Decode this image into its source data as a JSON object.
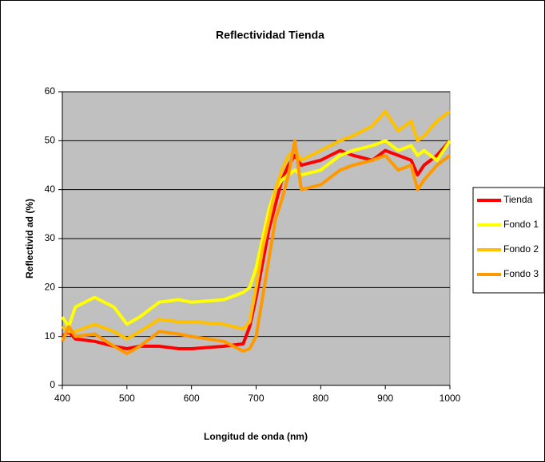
{
  "chart_data": {
    "type": "line",
    "title": "Reflectividad Tienda",
    "x_label": "Longitud de onda (nm)",
    "y_label": "Reflectivid ad (%)",
    "x": [
      400,
      410,
      420,
      450,
      480,
      500,
      520,
      550,
      580,
      600,
      650,
      680,
      690,
      700,
      710,
      720,
      730,
      740,
      750,
      760,
      770,
      800,
      830,
      850,
      880,
      900,
      920,
      940,
      950,
      960,
      980,
      1000
    ],
    "series": [
      {
        "name": "Tienda",
        "color": "#ff0000",
        "values": [
          10,
          11,
          9.5,
          9,
          8,
          7.5,
          8,
          8,
          7.5,
          7.5,
          8,
          8.5,
          12,
          18,
          25,
          32,
          37,
          42,
          45,
          47,
          45,
          46,
          48,
          47,
          46,
          48,
          47,
          46,
          43,
          45,
          47,
          50
        ]
      },
      {
        "name": "Fondo 1",
        "color": "#ffff00",
        "values": [
          14,
          12,
          16,
          18,
          16,
          12.5,
          14,
          17,
          17.5,
          17,
          17.5,
          19,
          20,
          24,
          30,
          36,
          40,
          42,
          43,
          44,
          43,
          44,
          47,
          48,
          49,
          50,
          48,
          49,
          47,
          48,
          46,
          50
        ]
      },
      {
        "name": "Fondo 2",
        "color": "#ffc000",
        "values": [
          12,
          11,
          11,
          12.5,
          11,
          9.5,
          11,
          13.5,
          13,
          13,
          12.5,
          11.5,
          13,
          20,
          28,
          34,
          40,
          44,
          47,
          48,
          46,
          48,
          50,
          51,
          53,
          56,
          52,
          54,
          50,
          51,
          54,
          56
        ]
      },
      {
        "name": "Fondo 3",
        "color": "#ff9900",
        "values": [
          9,
          12,
          10,
          10.5,
          8,
          6.5,
          8,
          11,
          10.5,
          10,
          9,
          7,
          7.5,
          10,
          18,
          26,
          34,
          38,
          43,
          50,
          40,
          41,
          44,
          45,
          46,
          47,
          44,
          45,
          40,
          42,
          45,
          47
        ]
      }
    ],
    "xlim": [
      400,
      1000
    ],
    "xticks": [
      400,
      500,
      600,
      700,
      800,
      900,
      1000
    ],
    "ylim": [
      0,
      60
    ],
    "yticks": [
      0,
      10,
      20,
      30,
      40,
      50,
      60
    ],
    "grid": true,
    "legend": "right",
    "plot_background": "#c0c0c0"
  }
}
